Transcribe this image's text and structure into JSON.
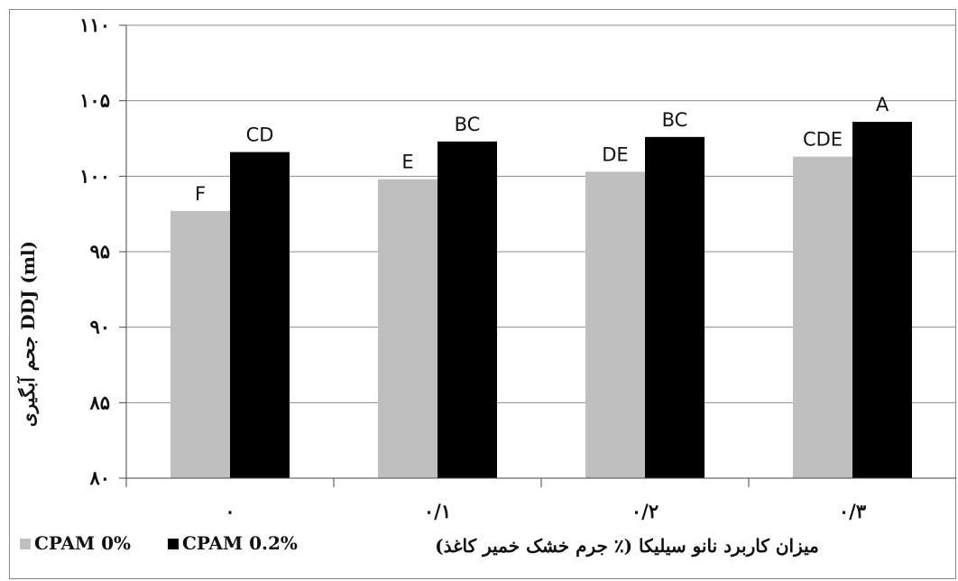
{
  "chart_data": {
    "type": "bar",
    "title": "",
    "ylabel": "جحم آبگیری DDJ (ml)",
    "xlabel": "میزان کاربرد نانو سیلیکا (٪ جرم خشک خمیر کاغذ)",
    "ylim": [
      80,
      110
    ],
    "yticks": [
      80,
      85,
      90,
      95,
      100,
      105,
      110
    ],
    "ytick_labels": [
      "۸۰",
      "۸۵",
      "۹۰",
      "۹۵",
      "۱۰۰",
      "۱۰۵",
      "۱۱۰"
    ],
    "categories": [
      "۰",
      "۰/۱",
      "۰/۲",
      "۰/۳"
    ],
    "grid": true,
    "legend": "bottom-left",
    "series": [
      {
        "name": "CPAM 0%",
        "color": "#bfbfbf",
        "values": [
          97.7,
          99.8,
          100.3,
          101.3
        ],
        "labels": [
          "F",
          "E",
          "DE",
          "CDE"
        ]
      },
      {
        "name": "CPAM 0.2%",
        "color": "#000000",
        "values": [
          101.6,
          102.3,
          102.6,
          103.6
        ],
        "labels": [
          "CD",
          "BC",
          "BC",
          "A"
        ]
      }
    ]
  }
}
